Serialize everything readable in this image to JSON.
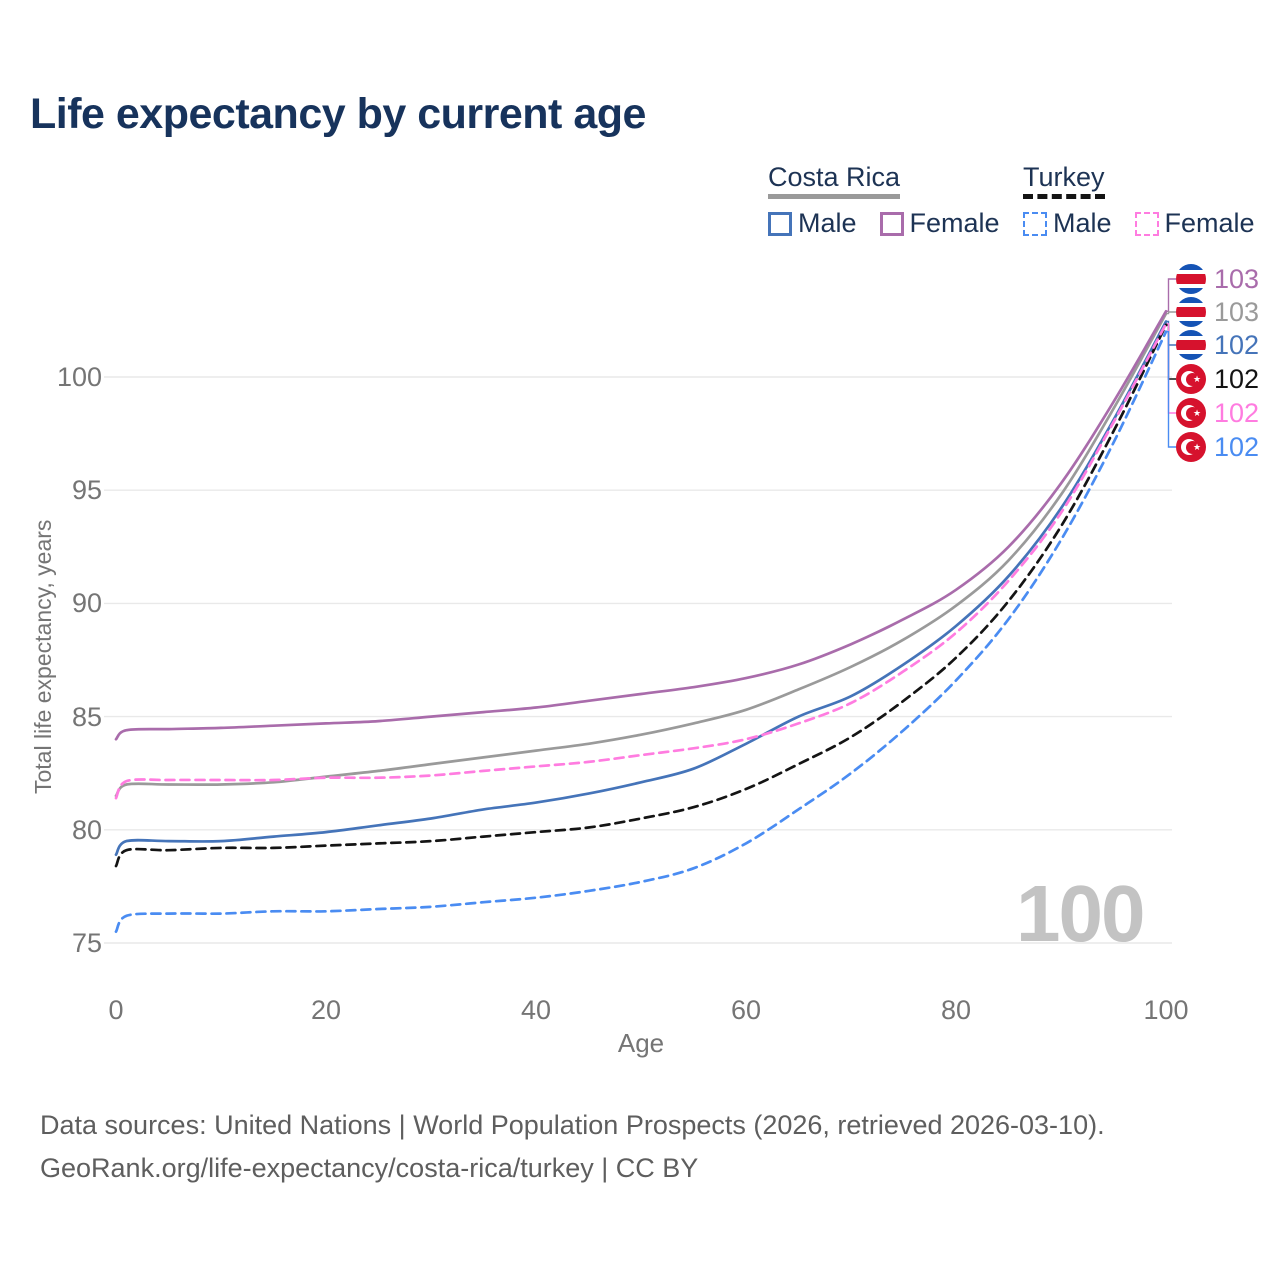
{
  "title": "Life expectancy by current age",
  "watermark": "100",
  "legend": {
    "costa_rica": {
      "label": "Costa Rica",
      "male": "Male",
      "female": "Female"
    },
    "turkey": {
      "label": "Turkey",
      "male": "Male",
      "female": "Female"
    }
  },
  "colors": {
    "cr_female": "#a96cab",
    "cr_both": "#9a9a9a",
    "cr_male": "#4574b9",
    "tr_female": "#ff7ce0",
    "tr_both": "#141414",
    "tr_male": "#4a8cf2",
    "title": "#17335c",
    "axis_text": "#757575",
    "grid": "#e9e9e9",
    "watermark": "#c3c3c3"
  },
  "callouts": [
    {
      "country": "costa-rica",
      "series": "cr_female",
      "value": "103"
    },
    {
      "country": "costa-rica",
      "series": "cr_both",
      "value": "103"
    },
    {
      "country": "costa-rica",
      "series": "cr_male",
      "value": "102"
    },
    {
      "country": "turkey",
      "series": "tr_both",
      "value": "102"
    },
    {
      "country": "turkey",
      "series": "tr_female",
      "value": "102"
    },
    {
      "country": "turkey",
      "series": "tr_male",
      "value": "102"
    }
  ],
  "footer": {
    "line1": "Data sources: United Nations | World Population Prospects (2026, retrieved 2026-03-10).",
    "line2": "GeoRank.org/life-expectancy/costa-rica/turkey | CC BY"
  },
  "chart_data": {
    "type": "line",
    "title": "Life expectancy by current age",
    "xlabel": "Age",
    "ylabel": "Total life expectancy, years",
    "xlim": [
      0,
      100
    ],
    "ylim": [
      74,
      104
    ],
    "xticks": [
      0,
      20,
      40,
      60,
      80,
      100
    ],
    "yticks": [
      75,
      80,
      85,
      90,
      95,
      100
    ],
    "grid": "horizontal-only",
    "legend_position": "top-right",
    "ages": [
      0,
      1,
      5,
      10,
      15,
      20,
      25,
      30,
      35,
      40,
      45,
      50,
      55,
      60,
      65,
      70,
      75,
      80,
      85,
      90,
      95,
      100
    ],
    "series": [
      {
        "id": "cr_both",
        "name": "Costa Rica",
        "style": "solid",
        "end_label": "103",
        "values": [
          81.5,
          82.0,
          82.0,
          82.0,
          82.1,
          82.35,
          82.6,
          82.9,
          83.2,
          83.5,
          83.8,
          84.2,
          84.7,
          85.3,
          86.2,
          87.2,
          88.4,
          89.9,
          91.9,
          94.8,
          98.6,
          102.8
        ]
      },
      {
        "id": "cr_female",
        "name": "Costa Rica Female",
        "style": "solid",
        "end_label": "103",
        "values": [
          84.0,
          84.4,
          84.45,
          84.5,
          84.6,
          84.7,
          84.8,
          85.0,
          85.2,
          85.4,
          85.7,
          86.0,
          86.3,
          86.7,
          87.3,
          88.2,
          89.3,
          90.6,
          92.5,
          95.3,
          98.9,
          102.9
        ]
      },
      {
        "id": "cr_male",
        "name": "Costa Rica Male",
        "style": "solid",
        "end_label": "102",
        "values": [
          78.9,
          79.5,
          79.5,
          79.5,
          79.7,
          79.9,
          80.2,
          80.5,
          80.9,
          81.2,
          81.6,
          82.1,
          82.7,
          83.8,
          85.0,
          85.9,
          87.3,
          89.0,
          91.2,
          94.2,
          98.1,
          102.45
        ]
      },
      {
        "id": "tr_both",
        "name": "Turkey",
        "style": "dashed",
        "end_label": "102",
        "values": [
          78.4,
          79.1,
          79.1,
          79.2,
          79.2,
          79.3,
          79.4,
          79.5,
          79.7,
          79.9,
          80.1,
          80.5,
          81.0,
          81.8,
          82.9,
          84.1,
          85.7,
          87.6,
          90.1,
          93.4,
          97.6,
          102.3
        ]
      },
      {
        "id": "tr_female",
        "name": "Turkey Female",
        "style": "dashed",
        "end_label": "102",
        "values": [
          81.4,
          82.15,
          82.2,
          82.2,
          82.2,
          82.3,
          82.3,
          82.4,
          82.6,
          82.8,
          83.0,
          83.3,
          83.6,
          84.0,
          84.7,
          85.6,
          87.0,
          88.7,
          91.0,
          94.0,
          98.0,
          102.35
        ]
      },
      {
        "id": "tr_male",
        "name": "Turkey Male",
        "style": "dashed",
        "end_label": "102",
        "values": [
          75.5,
          76.2,
          76.3,
          76.3,
          76.4,
          76.4,
          76.5,
          76.6,
          76.8,
          77.0,
          77.3,
          77.7,
          78.3,
          79.4,
          80.9,
          82.5,
          84.4,
          86.6,
          89.3,
          92.8,
          97.1,
          102.0
        ]
      }
    ]
  }
}
